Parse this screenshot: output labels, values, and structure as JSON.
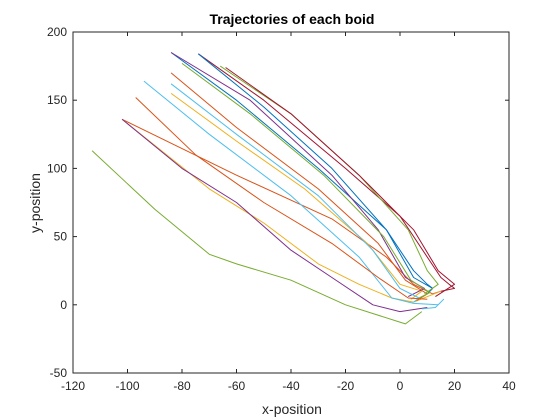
{
  "chart_data": {
    "type": "line",
    "title": "Trajectories of each boid",
    "xlabel": "x-position",
    "ylabel": "y-position",
    "xlim": [
      -120,
      40
    ],
    "ylim": [
      -50,
      200
    ],
    "xticks": [
      "-120",
      "-100",
      "-80",
      "-60",
      "-40",
      "-20",
      "0",
      "20",
      "40"
    ],
    "yticks": [
      "-50",
      "0",
      "50",
      "100",
      "150",
      "200"
    ],
    "grid": false,
    "series": [
      {
        "color": "#0072BD",
        "x": [
          -84,
          -60,
          -30,
          -5,
          5,
          10,
          12
        ],
        "y": [
          185,
          150,
          100,
          55,
          25,
          15,
          12
        ]
      },
      {
        "color": "#D95319",
        "x": [
          -102,
          -60,
          -25,
          -5,
          5,
          12,
          15
        ],
        "y": [
          136,
          95,
          63,
          35,
          15,
          8,
          10
        ]
      },
      {
        "color": "#EDB120",
        "x": [
          -102,
          -70,
          -50,
          -30,
          -15,
          -3,
          5,
          15
        ],
        "y": [
          136,
          85,
          60,
          30,
          15,
          5,
          2,
          10
        ]
      },
      {
        "color": "#7E2F8E",
        "x": [
          -102,
          -80,
          -60,
          -40,
          -25,
          -10,
          0,
          10
        ],
        "y": [
          136,
          100,
          75,
          40,
          20,
          0,
          -5,
          -2
        ]
      },
      {
        "color": "#77AC30",
        "x": [
          -113,
          -90,
          -70,
          -60,
          -40,
          -20,
          2,
          8
        ],
        "y": [
          113,
          70,
          37,
          30,
          18,
          0,
          -14,
          -5
        ]
      },
      {
        "color": "#4DBEEE",
        "x": [
          -94,
          -70,
          -40,
          -15,
          -3,
          5,
          14,
          16,
          13,
          8
        ],
        "y": [
          164,
          125,
          80,
          35,
          5,
          1,
          0,
          4,
          -2,
          -3
        ]
      },
      {
        "color": "#A2142F",
        "x": [
          -74,
          -50,
          -20,
          0,
          10,
          15,
          18,
          20,
          15
        ],
        "y": [
          184,
          150,
          100,
          65,
          35,
          20,
          15,
          12,
          10
        ]
      },
      {
        "color": "#0072BD",
        "x": [
          -74,
          -50,
          -25,
          -5,
          5,
          12,
          10
        ],
        "y": [
          184,
          145,
          100,
          55,
          20,
          12,
          8
        ]
      },
      {
        "color": "#D95319",
        "x": [
          -84,
          -60,
          -30,
          -8,
          2,
          10,
          6
        ],
        "y": [
          170,
          130,
          85,
          45,
          18,
          8,
          3
        ]
      },
      {
        "color": "#EDB120",
        "x": [
          -84,
          -60,
          -35,
          -12,
          0,
          8,
          4
        ],
        "y": [
          155,
          120,
          85,
          45,
          15,
          10,
          4
        ]
      },
      {
        "color": "#7E2F8E",
        "x": [
          -84,
          -55,
          -25,
          -8,
          2,
          9,
          3
        ],
        "y": [
          185,
          150,
          95,
          55,
          20,
          12,
          6
        ]
      },
      {
        "color": "#77AC30",
        "x": [
          -66,
          -40,
          -15,
          3,
          10,
          14,
          9
        ],
        "y": [
          175,
          140,
          95,
          55,
          25,
          15,
          8
        ]
      },
      {
        "color": "#4DBEEE",
        "x": [
          -84,
          -60,
          -30,
          -10,
          0,
          7,
          5
        ],
        "y": [
          162,
          125,
          80,
          40,
          12,
          5,
          2
        ]
      },
      {
        "color": "#A2142F",
        "x": [
          -64,
          -40,
          -15,
          5,
          14,
          20,
          13
        ],
        "y": [
          174,
          140,
          95,
          55,
          25,
          15,
          6
        ]
      },
      {
        "color": "#D95319",
        "x": [
          -97,
          -75,
          -50,
          -25,
          -8,
          3,
          10
        ],
        "y": [
          152,
          110,
          75,
          45,
          20,
          5,
          4
        ]
      },
      {
        "color": "#77AC30",
        "x": [
          -80,
          -55,
          -28,
          -6,
          4,
          11,
          7
        ],
        "y": [
          177,
          140,
          95,
          50,
          18,
          9,
          5
        ]
      }
    ]
  }
}
